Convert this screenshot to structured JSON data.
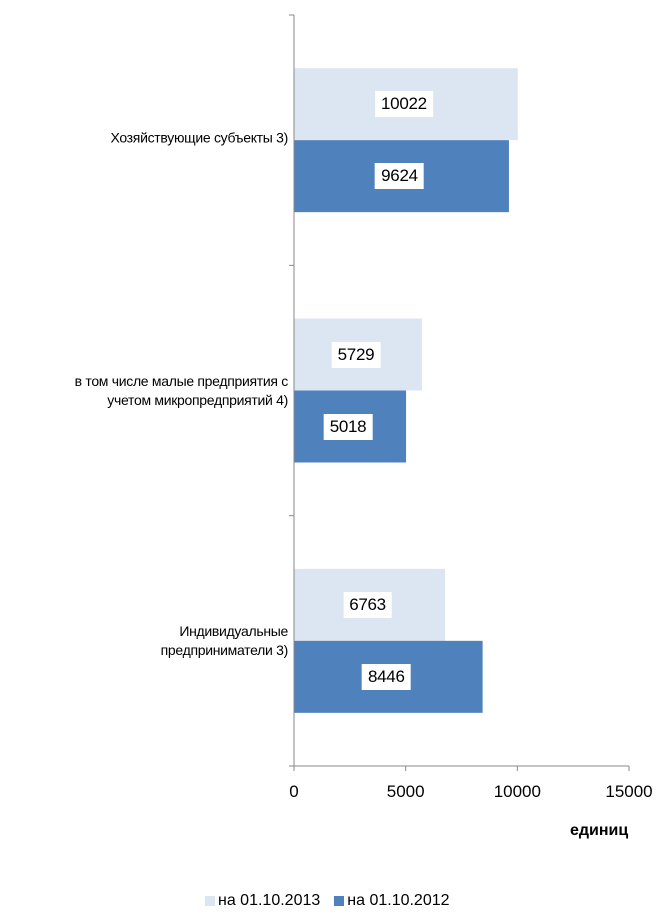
{
  "chart_data": {
    "type": "bar",
    "orientation": "horizontal",
    "categories": [
      "Хозяйствующие субъекты 3)",
      "в том числе малые предприятия с учетом микропредприятий 4)",
      "Индивидуальные предприниматели 3)"
    ],
    "category_lines": [
      [
        "Хозяйствующие субъекты 3)"
      ],
      [
        "в том числе малые предприятия с",
        "учетом микропредприятий 4)"
      ],
      [
        "Индивидуальные",
        "предприниматели 3)"
      ]
    ],
    "series": [
      {
        "name": "на 01.10.2013",
        "color": "#dce6f2",
        "values": [
          10022,
          5729,
          6763
        ]
      },
      {
        "name": "на 01.10.2012",
        "color": "#4f81bd",
        "values": [
          9624,
          5018,
          8446
        ]
      }
    ],
    "xlim": [
      0,
      15000
    ],
    "xticks": [
      "0",
      "5000",
      "10000",
      "15000"
    ],
    "xlabel": "единиц",
    "legend_position": "bottom",
    "grid": false
  }
}
